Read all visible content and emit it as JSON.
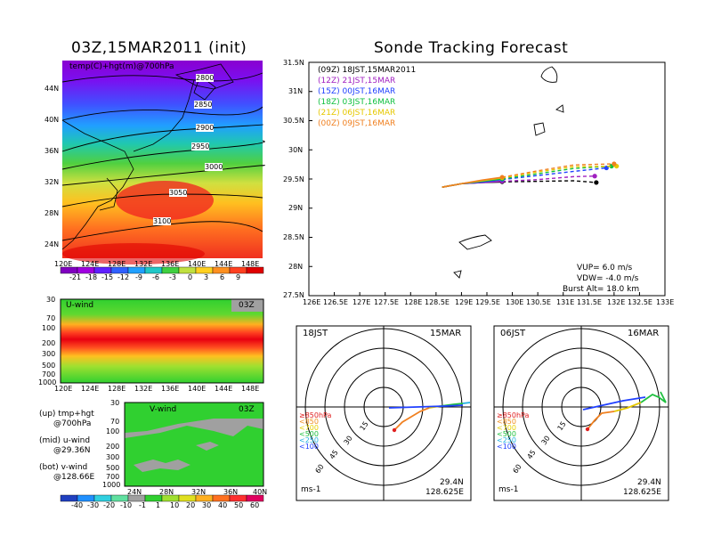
{
  "left": {
    "title": "03Z,15MAR2011 (init)",
    "map_label": "temp(C)+hgt(m)@700hPa",
    "lat_labels": [
      "44N",
      "40N",
      "36N",
      "32N",
      "28N",
      "24N"
    ],
    "lon_labels": [
      "120E",
      "124E",
      "128E",
      "132E",
      "136E",
      "140E",
      "144E",
      "148E"
    ],
    "contour_labels": [
      "2800",
      "2850",
      "2900",
      "2950",
      "3000",
      "3050",
      "3100"
    ],
    "temp_colorbar": [
      "-21",
      "-18",
      "-15",
      "-12",
      "-9",
      "-6",
      "-3",
      "0",
      "3",
      "6",
      "9"
    ],
    "u_panel": {
      "label": "U-wind",
      "time": "03Z",
      "p_labels": [
        "30",
        "70",
        "100",
        "200",
        "300",
        "500",
        "700",
        "1000"
      ]
    },
    "v_panel": {
      "label": "V-wind",
      "time": "03Z",
      "p_labels": [
        "30",
        "70",
        "100",
        "200",
        "300",
        "500",
        "700",
        "1000"
      ],
      "lat_labels": [
        "24N",
        "28N",
        "32N",
        "36N",
        "40N"
      ]
    },
    "wind_colorbar": [
      "-40",
      "-30",
      "-20",
      "-10",
      "-1",
      "1",
      "10",
      "20",
      "30",
      "40",
      "50",
      "60"
    ],
    "legend_up": "(up) tmp+hgt",
    "legend_up2": "@700hPa",
    "legend_mid": "(mid) u-wind",
    "legend_mid2": "@29.36N",
    "legend_bot": "(bot) v-wind",
    "legend_bot2": "@128.66E"
  },
  "main": {
    "title": "Sonde Tracking Forecast",
    "params": {
      "vup": "VUP= 6.0 m/s",
      "vdw": "VDW= -4.0 m/s",
      "burst": "Burst Alt= 18.0 km"
    }
  },
  "chart_data": {
    "type": "line",
    "title": "Sonde Tracking Forecast",
    "x_ticks": [
      "126E",
      "126.5E",
      "127E",
      "127.5E",
      "128E",
      "128.5E",
      "129E",
      "129.5E",
      "130E",
      "130.5E",
      "131E",
      "131.5E",
      "132E",
      "132.5E",
      "133E"
    ],
    "y_ticks": [
      "27.5N",
      "28N",
      "28.5N",
      "29N",
      "29.5N",
      "30N",
      "30.5N",
      "31N",
      "31.5N"
    ],
    "xlim": [
      126,
      133
    ],
    "ylim": [
      27.5,
      31.5
    ],
    "series": [
      {
        "name": "(09Z) 18JST,15MAR2011",
        "color": "#000000",
        "x": [
          128.62,
          129.0,
          129.4,
          129.8,
          130.5,
          131.2,
          131.65
        ],
        "y": [
          29.36,
          29.42,
          29.44,
          29.45,
          29.46,
          29.47,
          29.44
        ]
      },
      {
        "name": "(12Z) 21JST,15MAR",
        "color": "#a020c0",
        "x": [
          128.62,
          129.0,
          129.4,
          129.8,
          130.5,
          131.2,
          131.62
        ],
        "y": [
          29.36,
          29.42,
          29.44,
          29.46,
          29.49,
          29.54,
          29.55
        ]
      },
      {
        "name": "(15Z) 00JST,16MAR",
        "color": "#2040ff",
        "x": [
          128.62,
          129.0,
          129.4,
          129.8,
          130.5,
          131.2,
          131.85
        ],
        "y": [
          29.36,
          29.42,
          29.45,
          29.49,
          29.56,
          29.63,
          29.69
        ]
      },
      {
        "name": "(18Z) 03JST,16MAR",
        "color": "#10c040",
        "x": [
          128.62,
          129.0,
          129.4,
          129.8,
          130.5,
          131.2,
          131.95
        ],
        "y": [
          29.36,
          29.42,
          29.46,
          29.5,
          29.59,
          29.68,
          29.72
        ]
      },
      {
        "name": "(21Z) 06JST,16MAR",
        "color": "#e6c800",
        "x": [
          128.62,
          129.0,
          129.4,
          129.8,
          130.5,
          131.2,
          132.05
        ],
        "y": [
          29.36,
          29.42,
          29.47,
          29.52,
          29.62,
          29.71,
          29.72
        ]
      },
      {
        "name": "(00Z) 09JST,16MAR",
        "color": "#f08020",
        "x": [
          128.62,
          129.0,
          129.4,
          129.8,
          130.5,
          131.2,
          132.0
        ],
        "y": [
          29.36,
          29.42,
          29.48,
          29.53,
          29.64,
          29.74,
          29.76
        ]
      }
    ]
  },
  "hodo_left": {
    "time": "18JST",
    "date": "15MAR",
    "lat": "29.4N",
    "lon": "128.625E",
    "unit": "ms-1",
    "rings": [
      "15",
      "30",
      "45",
      "60"
    ]
  },
  "hodo_right": {
    "time": "06JST",
    "date": "16MAR",
    "lat": "29.4N",
    "lon": "128.625E",
    "unit": "ms-1",
    "rings": [
      "15",
      "30",
      "45",
      "60"
    ]
  },
  "hodo_legend": [
    {
      "label": "≥850hPa",
      "color": "#e02020"
    },
    {
      "label": "<850",
      "color": "#f09020"
    },
    {
      "label": "<700",
      "color": "#e6d000"
    },
    {
      "label": "<500",
      "color": "#20c040"
    },
    {
      "label": "<250",
      "color": "#20b0e0"
    },
    {
      "label": "<100",
      "color": "#2040ff"
    }
  ],
  "colors": {
    "temp_bar": [
      "#8000c0",
      "#a000e0",
      "#6020ff",
      "#3060ff",
      "#20a0ff",
      "#20c8c8",
      "#40d040",
      "#c0e040",
      "#ffd020",
      "#ff9020",
      "#ff4020",
      "#e00000"
    ],
    "wind_bar": [
      "#2040c0",
      "#2090ff",
      "#30d0e0",
      "#60e0a0",
      "#a0a0a0",
      "#30d030",
      "#a0e030",
      "#e0e020",
      "#ffb020",
      "#ff7020",
      "#ff3030",
      "#e00060"
    ]
  }
}
